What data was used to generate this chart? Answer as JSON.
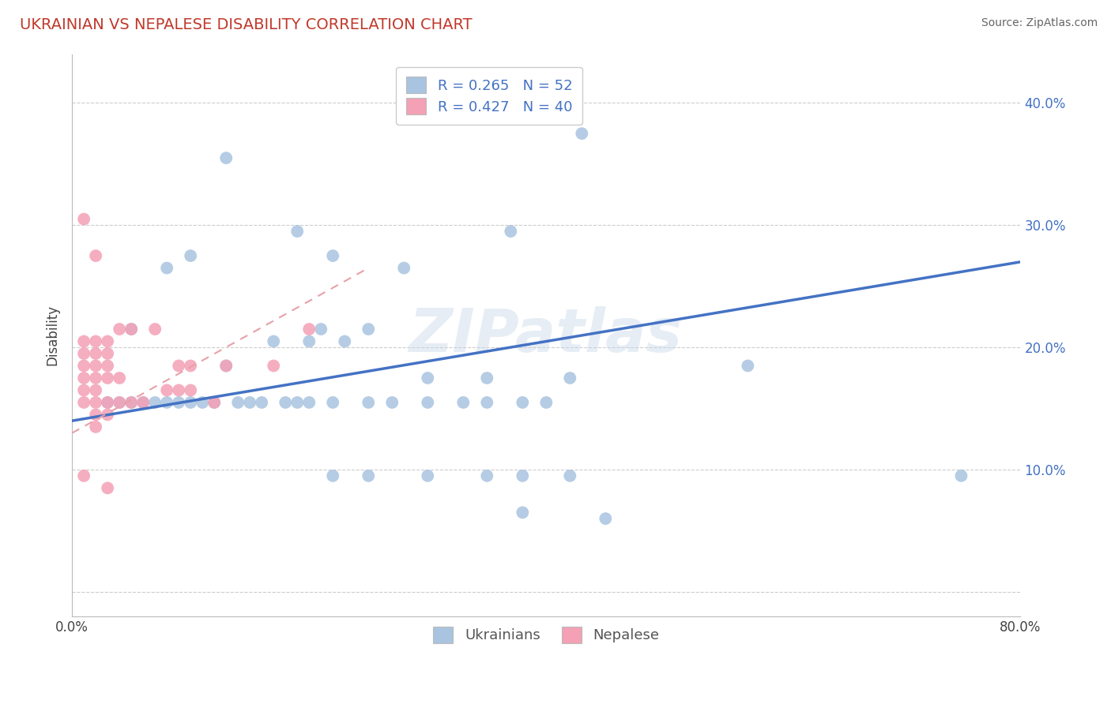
{
  "title": "UKRAINIAN VS NEPALESE DISABILITY CORRELATION CHART",
  "source": "Source: ZipAtlas.com",
  "ylabel": "Disability",
  "watermark": "ZIPatlas",
  "blue_color": "#a8c4e0",
  "pink_color": "#f4a0b5",
  "blue_line_color": "#4472c4",
  "pink_line_color": "#e8a0a8",
  "R_blue": 0.265,
  "N_blue": 52,
  "R_pink": 0.427,
  "N_pink": 40,
  "xlim": [
    0.0,
    0.8
  ],
  "ylim": [
    -0.02,
    0.44
  ],
  "yticks": [
    0.0,
    0.1,
    0.2,
    0.3,
    0.4
  ],
  "xticks": [
    0.0,
    0.1,
    0.2,
    0.3,
    0.4,
    0.5,
    0.6,
    0.7,
    0.8
  ],
  "blue_scatter_x": [
    0.13,
    0.19,
    0.22,
    0.28,
    0.37,
    0.43,
    0.57,
    0.05,
    0.08,
    0.1,
    0.13,
    0.17,
    0.2,
    0.21,
    0.23,
    0.25,
    0.3,
    0.35,
    0.42,
    0.03,
    0.04,
    0.05,
    0.06,
    0.07,
    0.08,
    0.09,
    0.1,
    0.11,
    0.12,
    0.14,
    0.15,
    0.16,
    0.18,
    0.19,
    0.2,
    0.22,
    0.25,
    0.27,
    0.3,
    0.33,
    0.35,
    0.38,
    0.4,
    0.22,
    0.25,
    0.3,
    0.35,
    0.38,
    0.42,
    0.75,
    0.38,
    0.45
  ],
  "blue_scatter_y": [
    0.355,
    0.295,
    0.275,
    0.265,
    0.295,
    0.375,
    0.185,
    0.215,
    0.265,
    0.275,
    0.185,
    0.205,
    0.205,
    0.215,
    0.205,
    0.215,
    0.175,
    0.175,
    0.175,
    0.155,
    0.155,
    0.155,
    0.155,
    0.155,
    0.155,
    0.155,
    0.155,
    0.155,
    0.155,
    0.155,
    0.155,
    0.155,
    0.155,
    0.155,
    0.155,
    0.155,
    0.155,
    0.155,
    0.155,
    0.155,
    0.155,
    0.155,
    0.155,
    0.095,
    0.095,
    0.095,
    0.095,
    0.095,
    0.095,
    0.095,
    0.065,
    0.06
  ],
  "pink_scatter_x": [
    0.01,
    0.01,
    0.01,
    0.01,
    0.01,
    0.02,
    0.02,
    0.02,
    0.02,
    0.02,
    0.03,
    0.03,
    0.03,
    0.03,
    0.04,
    0.04,
    0.05,
    0.07,
    0.09,
    0.1,
    0.13,
    0.17,
    0.2,
    0.01,
    0.02,
    0.02,
    0.02,
    0.03,
    0.03,
    0.04,
    0.05,
    0.06,
    0.08,
    0.09,
    0.1,
    0.12,
    0.01,
    0.02,
    0.03,
    0.01
  ],
  "pink_scatter_y": [
    0.205,
    0.195,
    0.185,
    0.175,
    0.165,
    0.205,
    0.195,
    0.185,
    0.175,
    0.165,
    0.205,
    0.195,
    0.185,
    0.175,
    0.215,
    0.175,
    0.215,
    0.215,
    0.185,
    0.185,
    0.185,
    0.185,
    0.215,
    0.155,
    0.155,
    0.145,
    0.135,
    0.155,
    0.145,
    0.155,
    0.155,
    0.155,
    0.165,
    0.165,
    0.165,
    0.155,
    0.305,
    0.275,
    0.085,
    0.095
  ]
}
